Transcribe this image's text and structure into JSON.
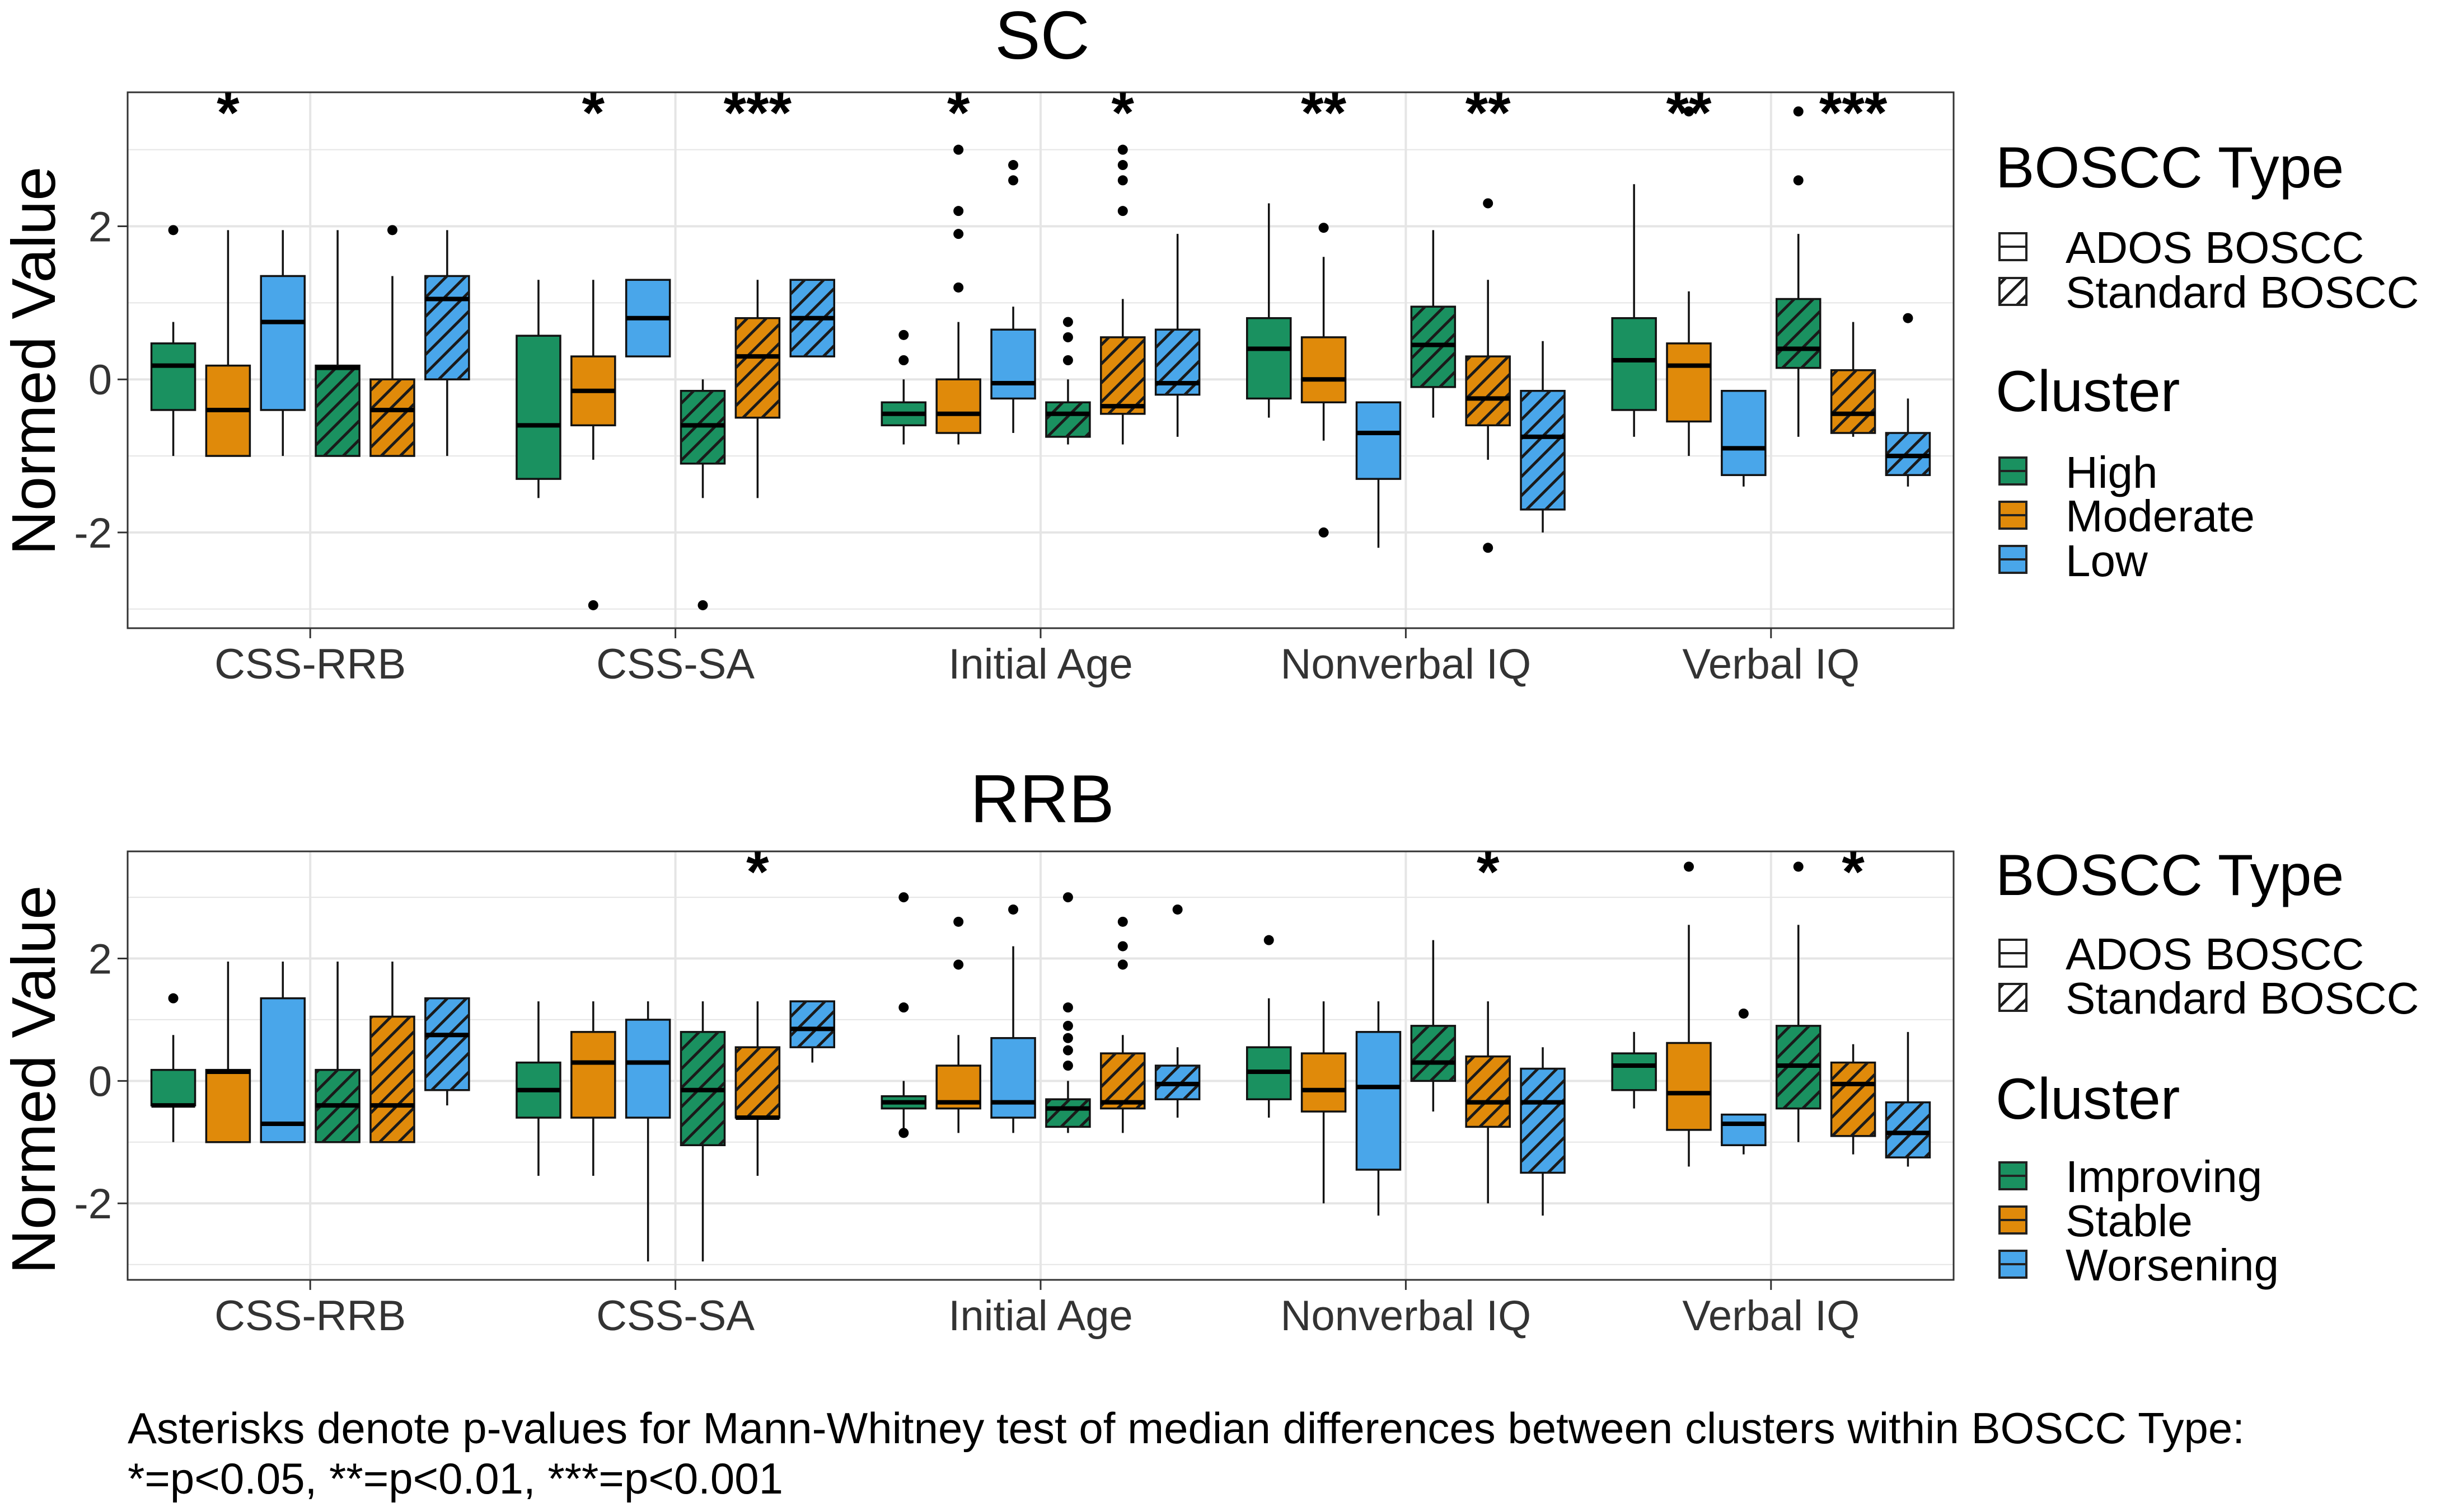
{
  "caption": {
    "line1": "Asterisks denote p-values for Mann-Whitney test of median differences between clusters within BOSCC Type:",
    "line2": "*=p<0.05, **=p<0.01, ***=p<0.001"
  },
  "colors": {
    "green": "#1a9160",
    "orange": "#e08a0a",
    "blue": "#49a6ea"
  },
  "chart_data": [
    {
      "type": "box",
      "title": "SC",
      "ylabel": "Normed Value",
      "ylim": [
        -3.25,
        3.75
      ],
      "yticks": [
        -2,
        0,
        2
      ],
      "grid": true,
      "categories": [
        "CSS-RRB",
        "CSS-SA",
        "Initial Age",
        "Nonverbal IQ",
        "Verbal IQ"
      ],
      "legend": {
        "placement": "right",
        "fill_title": "BOSCC Type",
        "fill_items": [
          "ADOS BOSCC",
          "Standard BOSCC"
        ],
        "cluster_title": "Cluster",
        "cluster_items": [
          "High",
          "Moderate",
          "Low"
        ]
      },
      "series": [
        {
          "name": "High",
          "pattern": "none",
          "boxes": [
            {
              "q1": -0.4,
              "median": 0.18,
              "q3": 0.47,
              "lo": -1.0,
              "hi": 0.75,
              "outliers": [
                1.95
              ]
            },
            {
              "q1": -1.3,
              "median": -0.6,
              "q3": 0.57,
              "lo": -1.55,
              "hi": 1.3,
              "outliers": []
            },
            {
              "q1": -0.6,
              "median": -0.45,
              "q3": -0.3,
              "lo": -0.85,
              "hi": 0.0,
              "outliers": [
                0.25,
                0.58
              ]
            },
            {
              "q1": -0.25,
              "median": 0.4,
              "q3": 0.8,
              "lo": -0.5,
              "hi": 2.3,
              "outliers": []
            },
            {
              "q1": -0.4,
              "median": 0.25,
              "q3": 0.8,
              "lo": -0.75,
              "hi": 2.55,
              "outliers": []
            }
          ]
        },
        {
          "name": "Moderate",
          "pattern": "none",
          "boxes": [
            {
              "q1": -1.0,
              "median": -0.4,
              "q3": 0.18,
              "lo": -1.0,
              "hi": 1.95,
              "outliers": []
            },
            {
              "q1": -0.6,
              "median": -0.15,
              "q3": 0.3,
              "lo": -1.05,
              "hi": 1.3,
              "outliers": [
                -2.95
              ]
            },
            {
              "q1": -0.7,
              "median": -0.45,
              "q3": 0.0,
              "lo": -0.85,
              "hi": 0.75,
              "outliers": [
                1.2,
                1.9,
                2.2,
                3.0
              ]
            },
            {
              "q1": -0.3,
              "median": 0.0,
              "q3": 0.55,
              "lo": -0.8,
              "hi": 1.6,
              "outliers": [
                1.98,
                -2.0
              ]
            },
            {
              "q1": -0.55,
              "median": 0.18,
              "q3": 0.47,
              "lo": -1.0,
              "hi": 1.15,
              "outliers": [
                3.5
              ]
            }
          ]
        },
        {
          "name": "Low",
          "pattern": "none",
          "boxes": [
            {
              "q1": -0.4,
              "median": 0.75,
              "q3": 1.35,
              "lo": -1.0,
              "hi": 1.95,
              "outliers": []
            },
            {
              "q1": 0.3,
              "median": 0.8,
              "q3": 1.3,
              "lo": 0.3,
              "hi": 1.3,
              "outliers": []
            },
            {
              "q1": -0.25,
              "median": -0.05,
              "q3": 0.65,
              "lo": -0.7,
              "hi": 0.95,
              "outliers": [
                2.6,
                2.8
              ]
            },
            {
              "q1": -1.3,
              "median": -0.7,
              "q3": -0.3,
              "lo": -2.2,
              "hi": -0.3,
              "outliers": []
            },
            {
              "q1": -1.25,
              "median": -0.9,
              "q3": -0.15,
              "lo": -1.4,
              "hi": -0.15,
              "outliers": []
            }
          ]
        },
        {
          "name": "High",
          "pattern": "hatch",
          "boxes": [
            {
              "q1": -1.0,
              "median": 0.15,
              "q3": 0.18,
              "lo": -1.0,
              "hi": 1.95,
              "outliers": []
            },
            {
              "q1": -1.1,
              "median": -0.6,
              "q3": -0.15,
              "lo": -1.55,
              "hi": 0.0,
              "outliers": [
                -2.95
              ]
            },
            {
              "q1": -0.75,
              "median": -0.45,
              "q3": -0.3,
              "lo": -0.85,
              "hi": 0.0,
              "outliers": [
                0.25,
                0.55,
                0.75
              ]
            },
            {
              "q1": -0.1,
              "median": 0.45,
              "q3": 0.95,
              "lo": -0.5,
              "hi": 1.95,
              "outliers": []
            },
            {
              "q1": 0.15,
              "median": 0.4,
              "q3": 1.05,
              "lo": -0.75,
              "hi": 1.9,
              "outliers": [
                2.6,
                3.5
              ]
            }
          ]
        },
        {
          "name": "Moderate",
          "pattern": "hatch",
          "boxes": [
            {
              "q1": -1.0,
              "median": -0.4,
              "q3": 0.0,
              "lo": -1.0,
              "hi": 1.35,
              "outliers": [
                1.95
              ]
            },
            {
              "q1": -0.5,
              "median": 0.3,
              "q3": 0.8,
              "lo": -1.55,
              "hi": 1.3,
              "outliers": []
            },
            {
              "q1": -0.45,
              "median": -0.35,
              "q3": 0.55,
              "lo": -0.85,
              "hi": 1.05,
              "outliers": [
                2.2,
                2.6,
                2.8,
                3.0
              ]
            },
            {
              "q1": -0.6,
              "median": -0.25,
              "q3": 0.3,
              "lo": -1.05,
              "hi": 1.3,
              "outliers": [
                2.3,
                -2.2
              ]
            },
            {
              "q1": -0.7,
              "median": -0.45,
              "q3": 0.12,
              "lo": -0.75,
              "hi": 0.75,
              "outliers": []
            }
          ]
        },
        {
          "name": "Low",
          "pattern": "hatch",
          "boxes": [
            {
              "q1": 0.0,
              "median": 1.05,
              "q3": 1.35,
              "lo": -1.0,
              "hi": 1.95,
              "outliers": []
            },
            {
              "q1": 0.3,
              "median": 0.8,
              "q3": 1.3,
              "lo": 0.3,
              "hi": 1.3,
              "outliers": []
            },
            {
              "q1": -0.2,
              "median": -0.05,
              "q3": 0.65,
              "lo": -0.75,
              "hi": 1.9,
              "outliers": []
            },
            {
              "q1": -1.7,
              "median": -0.75,
              "q3": -0.15,
              "lo": -2.0,
              "hi": 0.5,
              "outliers": []
            },
            {
              "q1": -1.25,
              "median": -1.0,
              "q3": -0.7,
              "lo": -1.4,
              "hi": -0.25,
              "outliers": [
                0.8
              ]
            }
          ]
        }
      ],
      "annotations": [
        {
          "category": 0,
          "group": 0,
          "text": "*"
        },
        {
          "category": 1,
          "group": 0,
          "text": "*"
        },
        {
          "category": 1,
          "group": 1,
          "text": "***"
        },
        {
          "category": 2,
          "group": 0,
          "text": "*"
        },
        {
          "category": 2,
          "group": 1,
          "text": "*"
        },
        {
          "category": 3,
          "group": 0,
          "text": "**"
        },
        {
          "category": 3,
          "group": 1,
          "text": "**"
        },
        {
          "category": 4,
          "group": 0,
          "text": "**"
        },
        {
          "category": 4,
          "group": 1,
          "text": "***"
        }
      ]
    },
    {
      "type": "box",
      "title": "RRB",
      "ylabel": "Normed Value",
      "ylim": [
        -3.25,
        3.75
      ],
      "yticks": [
        -2,
        0,
        2
      ],
      "grid": true,
      "categories": [
        "CSS-RRB",
        "CSS-SA",
        "Initial Age",
        "Nonverbal IQ",
        "Verbal IQ"
      ],
      "legend": {
        "placement": "right",
        "fill_title": "BOSCC Type",
        "fill_items": [
          "ADOS BOSCC",
          "Standard BOSCC"
        ],
        "cluster_title": "Cluster",
        "cluster_items": [
          "Improving",
          "Stable",
          "Worsening"
        ]
      },
      "series": [
        {
          "name": "Improving",
          "pattern": "none",
          "boxes": [
            {
              "q1": -0.4,
              "median": -0.4,
              "q3": 0.18,
              "lo": -1.0,
              "hi": 0.75,
              "outliers": [
                1.35
              ]
            },
            {
              "q1": -0.6,
              "median": -0.15,
              "q3": 0.3,
              "lo": -1.55,
              "hi": 1.3,
              "outliers": []
            },
            {
              "q1": -0.45,
              "median": -0.35,
              "q3": -0.25,
              "lo": -0.85,
              "hi": 0.0,
              "outliers": [
                1.2,
                3.0,
                -0.85
              ]
            },
            {
              "q1": -0.3,
              "median": 0.15,
              "q3": 0.55,
              "lo": -0.6,
              "hi": 1.35,
              "outliers": [
                2.3
              ]
            },
            {
              "q1": -0.15,
              "median": 0.25,
              "q3": 0.45,
              "lo": -0.45,
              "hi": 0.8,
              "outliers": []
            }
          ]
        },
        {
          "name": "Stable",
          "pattern": "none",
          "boxes": [
            {
              "q1": -1.0,
              "median": 0.15,
              "q3": 0.18,
              "lo": -1.0,
              "hi": 1.95,
              "outliers": []
            },
            {
              "q1": -0.6,
              "median": 0.3,
              "q3": 0.8,
              "lo": -1.55,
              "hi": 1.3,
              "outliers": []
            },
            {
              "q1": -0.45,
              "median": -0.35,
              "q3": 0.25,
              "lo": -0.85,
              "hi": 0.75,
              "outliers": [
                1.9,
                2.6
              ]
            },
            {
              "q1": -0.5,
              "median": -0.15,
              "q3": 0.45,
              "lo": -2.0,
              "hi": 1.3,
              "outliers": []
            },
            {
              "q1": -0.8,
              "median": -0.2,
              "q3": 0.62,
              "lo": -1.4,
              "hi": 2.55,
              "outliers": [
                3.5
              ]
            }
          ]
        },
        {
          "name": "Worsening",
          "pattern": "none",
          "boxes": [
            {
              "q1": -1.0,
              "median": -0.7,
              "q3": 1.35,
              "lo": -1.0,
              "hi": 1.95,
              "outliers": []
            },
            {
              "q1": -0.6,
              "median": 0.3,
              "q3": 1.0,
              "lo": -2.95,
              "hi": 1.3,
              "outliers": []
            },
            {
              "q1": -0.6,
              "median": -0.35,
              "q3": 0.7,
              "lo": -0.85,
              "hi": 2.2,
              "outliers": [
                2.8
              ]
            },
            {
              "q1": -1.45,
              "median": -0.1,
              "q3": 0.8,
              "lo": -2.2,
              "hi": 1.3,
              "outliers": []
            },
            {
              "q1": -1.05,
              "median": -0.7,
              "q3": -0.55,
              "lo": -1.2,
              "hi": -0.55,
              "outliers": [
                1.1
              ]
            }
          ]
        },
        {
          "name": "Improving",
          "pattern": "hatch",
          "boxes": [
            {
              "q1": -1.0,
              "median": -0.4,
              "q3": 0.18,
              "lo": -1.0,
              "hi": 1.95,
              "outliers": []
            },
            {
              "q1": -1.05,
              "median": -0.15,
              "q3": 0.8,
              "lo": -2.95,
              "hi": 1.3,
              "outliers": []
            },
            {
              "q1": -0.75,
              "median": -0.45,
              "q3": -0.3,
              "lo": -0.85,
              "hi": 0.0,
              "outliers": [
                0.25,
                0.5,
                0.7,
                0.9,
                1.2,
                3.0
              ]
            },
            {
              "q1": 0.0,
              "median": 0.3,
              "q3": 0.9,
              "lo": -0.5,
              "hi": 2.3,
              "outliers": []
            },
            {
              "q1": -0.45,
              "median": 0.25,
              "q3": 0.9,
              "lo": -1.0,
              "hi": 2.55,
              "outliers": [
                3.5
              ]
            }
          ]
        },
        {
          "name": "Stable",
          "pattern": "hatch",
          "boxes": [
            {
              "q1": -1.0,
              "median": -0.4,
              "q3": 1.05,
              "lo": -1.0,
              "hi": 1.95,
              "outliers": []
            },
            {
              "q1": -0.6,
              "median": -0.6,
              "q3": 0.55,
              "lo": -1.55,
              "hi": 1.3,
              "outliers": []
            },
            {
              "q1": -0.45,
              "median": -0.35,
              "q3": 0.45,
              "lo": -0.85,
              "hi": 0.75,
              "outliers": [
                1.9,
                2.2,
                2.6
              ]
            },
            {
              "q1": -0.75,
              "median": -0.35,
              "q3": 0.4,
              "lo": -2.0,
              "hi": 1.3,
              "outliers": []
            },
            {
              "q1": -0.9,
              "median": -0.05,
              "q3": 0.3,
              "lo": -1.2,
              "hi": 0.6,
              "outliers": []
            }
          ]
        },
        {
          "name": "Worsening",
          "pattern": "hatch",
          "boxes": [
            {
              "q1": -0.15,
              "median": 0.75,
              "q3": 1.35,
              "lo": -0.4,
              "hi": 1.35,
              "outliers": []
            },
            {
              "q1": 0.55,
              "median": 0.85,
              "q3": 1.3,
              "lo": 0.3,
              "hi": 1.3,
              "outliers": []
            },
            {
              "q1": -0.3,
              "median": -0.05,
              "q3": 0.25,
              "lo": -0.6,
              "hi": 0.55,
              "outliers": [
                2.8
              ]
            },
            {
              "q1": -1.5,
              "median": -0.35,
              "q3": 0.2,
              "lo": -2.2,
              "hi": 0.55,
              "outliers": []
            },
            {
              "q1": -1.25,
              "median": -0.85,
              "q3": -0.35,
              "lo": -1.4,
              "hi": 0.8,
              "outliers": []
            }
          ]
        }
      ],
      "annotations": [
        {
          "category": 1,
          "group": 1,
          "text": "*"
        },
        {
          "category": 3,
          "group": 1,
          "text": "*"
        },
        {
          "category": 4,
          "group": 1,
          "text": "*"
        }
      ]
    }
  ]
}
